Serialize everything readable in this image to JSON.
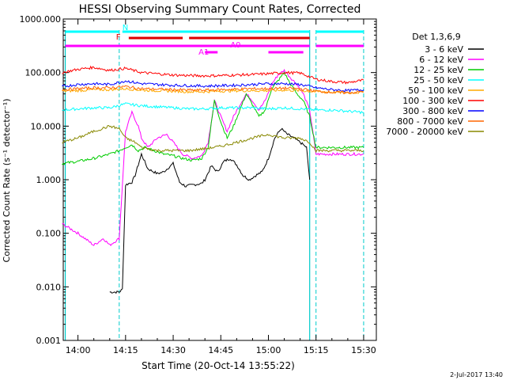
{
  "chart_data": {
    "type": "line",
    "title": "HESSI Observing Summary Count Rates, Corrected",
    "xlabel": "Start Time (20-Oct-14 13:55:22)",
    "ylabel": "Corrected Count Rate (s⁻¹ detector⁻¹)",
    "y_scale": "log",
    "ylim": [
      0.001,
      1000
    ],
    "xlim": [
      "13:55:22",
      "15:34:00"
    ],
    "x_ticks": [
      "14:00",
      "14:15",
      "14:30",
      "14:45",
      "15:00",
      "15:15",
      "15:30"
    ],
    "y_ticks": [
      "1000.000",
      "100.000",
      "10.000",
      "1.000",
      "0.100",
      "0.010",
      "0.001"
    ],
    "legend_title": "Det 1,3,6,9",
    "legend_position": "right",
    "series": [
      {
        "name": "3 - 6 keV",
        "color": "#000000",
        "x": [
          "14:10",
          "14:12",
          "14:13",
          "14:14",
          "14:15",
          "14:17",
          "14:18",
          "14:20",
          "14:22",
          "14:25",
          "14:27",
          "14:30",
          "14:32",
          "14:34",
          "14:36",
          "14:39",
          "14:40",
          "14:42",
          "14:44",
          "14:46",
          "14:48",
          "14:50",
          "14:52",
          "14:54",
          "14:56",
          "14:58",
          "15:00",
          "15:02",
          "15:04",
          "15:06",
          "15:08",
          "15:10",
          "15:12",
          "15:13"
        ],
        "y": [
          0.008,
          0.008,
          0.008,
          0.009,
          0.8,
          0.9,
          1.2,
          3.0,
          1.6,
          1.3,
          1.4,
          2.0,
          0.9,
          0.75,
          0.8,
          0.85,
          1.0,
          1.8,
          1.4,
          2.2,
          2.5,
          1.9,
          1.2,
          1.0,
          1.2,
          1.4,
          2.5,
          6,
          9,
          7,
          6,
          5,
          4,
          1.0
        ]
      },
      {
        "name": "6 - 12 keV",
        "color": "#ff00ff",
        "x": [
          "13:55",
          "14:00",
          "14:05",
          "14:08",
          "14:10",
          "14:13",
          "14:15",
          "14:17",
          "14:19",
          "14:20",
          "14:22",
          "14:25",
          "14:28",
          "14:30",
          "14:33",
          "14:36",
          "14:39",
          "14:41",
          "14:43",
          "14:45",
          "14:47",
          "14:49",
          "14:51",
          "14:53",
          "14:55",
          "14:57",
          "14:59",
          "15:01",
          "15:03",
          "15:05",
          "15:07",
          "15:09",
          "15:11",
          "15:13",
          "15:15",
          "15:20",
          "15:25",
          "15:30"
        ],
        "y": [
          0.15,
          0.1,
          0.06,
          0.08,
          0.06,
          0.08,
          8,
          18,
          10,
          6,
          4,
          6,
          7,
          5,
          3,
          2.5,
          2.8,
          5,
          30,
          15,
          8,
          15,
          25,
          40,
          30,
          20,
          30,
          60,
          90,
          110,
          80,
          60,
          40,
          20,
          3,
          3,
          3,
          3
        ]
      },
      {
        "name": "12 - 25 keV",
        "color": "#00cc00",
        "x": [
          "13:55",
          "14:00",
          "14:05",
          "14:10",
          "14:13",
          "14:15",
          "14:17",
          "14:19",
          "14:21",
          "14:24",
          "14:27",
          "14:30",
          "14:33",
          "14:36",
          "14:39",
          "14:41",
          "14:43",
          "14:45",
          "14:47",
          "14:49",
          "14:51",
          "14:53",
          "14:55",
          "14:57",
          "14:59",
          "15:01",
          "15:03",
          "15:05",
          "15:07",
          "15:09",
          "15:11",
          "15:13",
          "15:15",
          "15:20",
          "15:25",
          "15:30"
        ],
        "y": [
          2,
          2.2,
          2.5,
          3,
          3.5,
          4,
          4.5,
          3.5,
          4,
          3.5,
          3,
          2.8,
          2.5,
          2.3,
          2.5,
          4,
          30,
          12,
          6,
          10,
          20,
          40,
          25,
          15,
          20,
          50,
          70,
          100,
          60,
          40,
          30,
          15,
          4,
          4,
          4,
          4
        ]
      },
      {
        "name": "25 - 50 keV",
        "color": "#00ffff",
        "x": [
          "13:55",
          "14:00",
          "14:05",
          "14:10",
          "14:15",
          "14:20",
          "14:25",
          "14:30",
          "14:35",
          "14:40",
          "14:45",
          "14:50",
          "14:55",
          "15:00",
          "15:05",
          "15:10",
          "15:15",
          "15:20",
          "15:25",
          "15:30"
        ],
        "y": [
          20,
          21,
          22,
          22,
          26,
          24,
          23,
          22,
          21,
          21,
          22,
          22,
          22,
          21,
          22,
          21,
          20,
          20,
          19,
          18
        ]
      },
      {
        "name": "50 - 100 keV",
        "color": "#ffaa00",
        "x": [
          "13:55",
          "14:00",
          "14:05",
          "14:10",
          "14:15",
          "14:20",
          "14:25",
          "14:30",
          "14:35",
          "14:40",
          "14:45",
          "14:50",
          "14:55",
          "15:00",
          "15:05",
          "15:10",
          "15:15",
          "15:20",
          "15:25",
          "15:30"
        ],
        "y": [
          45,
          46,
          48,
          48,
          50,
          47,
          46,
          45,
          44,
          44,
          45,
          46,
          46,
          46,
          47,
          46,
          44,
          43,
          42,
          43
        ]
      },
      {
        "name": "100 - 300 keV",
        "color": "#ff0000",
        "x": [
          "13:55",
          "14:00",
          "14:05",
          "14:10",
          "14:15",
          "14:20",
          "14:25",
          "14:30",
          "14:35",
          "14:40",
          "14:45",
          "14:50",
          "14:55",
          "15:00",
          "15:05",
          "15:10",
          "15:15",
          "15:20",
          "15:25",
          "15:30"
        ],
        "y": [
          100,
          115,
          125,
          110,
          120,
          100,
          95,
          90,
          88,
          87,
          88,
          90,
          92,
          95,
          100,
          98,
          75,
          68,
          65,
          72
        ]
      },
      {
        "name": "300 - 800 keV",
        "color": "#0000ff",
        "x": [
          "13:55",
          "14:00",
          "14:05",
          "14:10",
          "14:15",
          "14:20",
          "14:25",
          "14:30",
          "14:35",
          "14:40",
          "14:45",
          "14:50",
          "14:55",
          "15:00",
          "15:05",
          "15:10",
          "15:15",
          "15:20",
          "15:25",
          "15:30"
        ],
        "y": [
          55,
          60,
          62,
          60,
          70,
          62,
          60,
          58,
          57,
          56,
          57,
          58,
          60,
          62,
          62,
          60,
          52,
          48,
          46,
          48
        ]
      },
      {
        "name": "800 - 7000 keV",
        "color": "#ff6600",
        "x": [
          "13:55",
          "14:00",
          "14:05",
          "14:10",
          "14:15",
          "14:20",
          "14:25",
          "14:30",
          "14:35",
          "14:40",
          "14:45",
          "14:50",
          "14:55",
          "15:00",
          "15:05",
          "15:10",
          "15:15",
          "15:20",
          "15:25",
          "15:30"
        ],
        "y": [
          48,
          50,
          52,
          52,
          55,
          50,
          49,
          48,
          47,
          47,
          48,
          49,
          50,
          50,
          51,
          50,
          45,
          43,
          42,
          44
        ]
      },
      {
        "name": "7000 - 20000 keV",
        "color": "#888800",
        "x": [
          "13:55",
          "14:00",
          "14:05",
          "14:10",
          "14:13",
          "14:15",
          "14:18",
          "14:20",
          "14:25",
          "14:30",
          "14:35",
          "14:40",
          "14:45",
          "14:50",
          "14:55",
          "15:00",
          "15:05",
          "15:10",
          "15:13",
          "15:15",
          "15:20",
          "15:25",
          "15:30"
        ],
        "y": [
          5,
          6,
          8,
          10,
          9,
          6,
          5,
          4,
          3.5,
          3.5,
          3.5,
          3.8,
          4.2,
          5,
          6,
          7,
          6,
          6,
          5,
          3.5,
          3.5,
          3.5,
          3.5
        ]
      }
    ],
    "annotations": [
      {
        "label": "N",
        "color": "#00ffff",
        "segments": [
          [
            "13:56",
            "14:13"
          ],
          [
            "14:14",
            "15:13"
          ],
          [
            "15:15",
            "15:30"
          ]
        ]
      },
      {
        "label": "F",
        "color": "#dd0000",
        "segments": [
          [
            "14:16",
            "14:33"
          ],
          [
            "14:35",
            "15:13"
          ]
        ]
      },
      {
        "label": "A0",
        "color": "#ff00ff",
        "segments": [
          [
            "13:56",
            "15:13"
          ],
          [
            "15:15",
            "15:30"
          ]
        ]
      },
      {
        "label": "A1",
        "color": "#ff00ff",
        "segments": [
          [
            "14:40",
            "14:44"
          ],
          [
            "15:00",
            "15:11"
          ]
        ]
      }
    ],
    "vlines_solid": [
      "13:56",
      "15:13"
    ],
    "vlines_dashed": [
      "14:13",
      "15:15",
      "15:30"
    ],
    "vline_color": "#00cccc"
  },
  "footer": {
    "date": "2-Jul-2017 13:40"
  }
}
